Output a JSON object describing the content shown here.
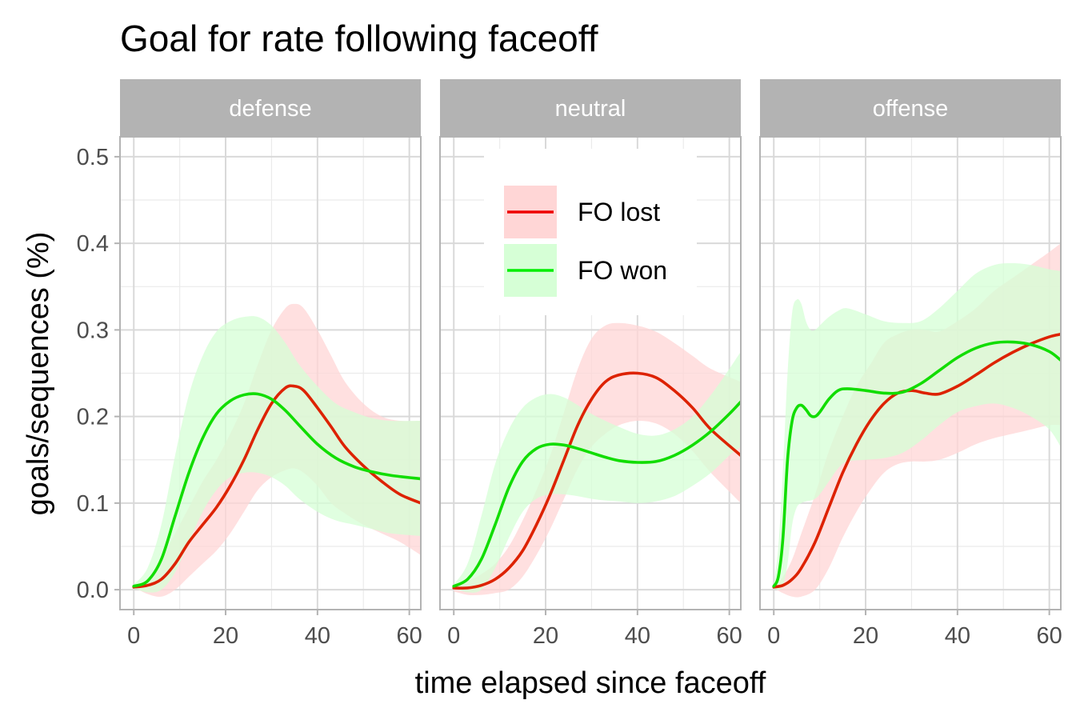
{
  "chart_data": {
    "type": "line",
    "title": "Goal for rate following faceoff",
    "xlabel": "time elapsed since faceoff",
    "ylabel": "goals/sequences (%)",
    "xlim": [
      -3,
      62.5
    ],
    "ylim": [
      -0.023,
      0.523
    ],
    "x_ticks": [
      0,
      20,
      40,
      60
    ],
    "y_ticks": [
      0.0,
      0.1,
      0.2,
      0.3,
      0.4,
      0.5
    ],
    "y_tick_labels": [
      "0.0",
      "0.1",
      "0.2",
      "0.3",
      "0.4",
      "0.5"
    ],
    "grid": true,
    "legend": {
      "placement": "inside neutral panel, upper left",
      "entries": [
        {
          "label": "FO lost",
          "color": "#ee0000",
          "ribbon_color": "#ffd6d6"
        },
        {
          "label": "FO won",
          "color": "#00ee00",
          "ribbon_color": "#d6ffd6"
        }
      ]
    },
    "panels": [
      {
        "facet": "defense",
        "series": [
          {
            "name": "FO lost",
            "x": [
              0,
              3,
              6,
              9,
              12,
              15,
              18,
              21,
              24,
              27,
              30,
              33,
              35,
              37,
              40,
              43,
              46,
              50,
              54,
              58,
              62.5
            ],
            "y": [
              0.003,
              0.005,
              0.012,
              0.03,
              0.055,
              0.075,
              0.095,
              0.12,
              0.15,
              0.185,
              0.215,
              0.233,
              0.235,
              0.23,
              0.21,
              0.188,
              0.165,
              0.143,
              0.125,
              0.11,
              0.1
            ],
            "lower": [
              0.003,
              -0.005,
              -0.008,
              0.0,
              0.015,
              0.03,
              0.045,
              0.065,
              0.09,
              0.115,
              0.13,
              0.138,
              0.14,
              0.135,
              0.12,
              0.1,
              0.088,
              0.075,
              0.065,
              0.055,
              0.04
            ],
            "upper": [
              0.005,
              0.012,
              0.035,
              0.065,
              0.095,
              0.125,
              0.15,
              0.18,
              0.215,
              0.26,
              0.3,
              0.325,
              0.33,
              0.325,
              0.3,
              0.27,
              0.24,
              0.215,
              0.2,
              0.195,
              0.195
            ]
          },
          {
            "name": "FO won",
            "x": [
              0,
              3,
              6,
              9,
              12,
              15,
              18,
              21,
              24,
              27,
              30,
              33,
              36,
              40,
              44,
              48,
              52,
              56,
              62.5
            ],
            "y": [
              0.004,
              0.01,
              0.035,
              0.085,
              0.135,
              0.175,
              0.203,
              0.218,
              0.225,
              0.226,
              0.22,
              0.207,
              0.19,
              0.168,
              0.152,
              0.142,
              0.136,
              0.132,
              0.128
            ],
            "lower": [
              0.002,
              -0.003,
              0.0,
              0.02,
              0.055,
              0.09,
              0.115,
              0.13,
              0.135,
              0.135,
              0.13,
              0.12,
              0.105,
              0.09,
              0.08,
              0.075,
              0.07,
              0.065,
              0.062
            ],
            "upper": [
              0.006,
              0.025,
              0.075,
              0.155,
              0.225,
              0.27,
              0.298,
              0.31,
              0.315,
              0.315,
              0.305,
              0.285,
              0.26,
              0.235,
              0.215,
              0.205,
              0.198,
              0.195,
              0.195
            ]
          }
        ]
      },
      {
        "facet": "neutral",
        "series": [
          {
            "name": "FO lost",
            "x": [
              0,
              3,
              6,
              9,
              12,
              15,
              18,
              21,
              24,
              27,
              30,
              33,
              36,
              40,
              44,
              48,
              52,
              56,
              62.5
            ],
            "y": [
              0.002,
              0.002,
              0.005,
              0.012,
              0.025,
              0.045,
              0.075,
              0.11,
              0.15,
              0.19,
              0.22,
              0.24,
              0.248,
              0.25,
              0.245,
              0.23,
              0.21,
              0.185,
              0.155
            ],
            "lower": [
              -0.002,
              -0.006,
              -0.006,
              -0.004,
              0.0,
              0.015,
              0.04,
              0.07,
              0.105,
              0.14,
              0.165,
              0.18,
              0.19,
              0.195,
              0.192,
              0.18,
              0.16,
              0.135,
              0.1
            ],
            "upper": [
              0.006,
              0.01,
              0.018,
              0.03,
              0.05,
              0.08,
              0.115,
              0.155,
              0.205,
              0.255,
              0.29,
              0.305,
              0.308,
              0.305,
              0.298,
              0.285,
              0.27,
              0.255,
              0.24
            ]
          },
          {
            "name": "FO won",
            "x": [
              0,
              3,
              6,
              9,
              12,
              15,
              18,
              21,
              24,
              27,
              30,
              33,
              36,
              40,
              44,
              48,
              52,
              56,
              60,
              62.5
            ],
            "y": [
              0.004,
              0.012,
              0.035,
              0.075,
              0.118,
              0.148,
              0.163,
              0.168,
              0.167,
              0.163,
              0.158,
              0.153,
              0.149,
              0.147,
              0.148,
              0.155,
              0.167,
              0.183,
              0.203,
              0.217
            ],
            "lower": [
              0.002,
              -0.003,
              0.0,
              0.025,
              0.06,
              0.09,
              0.105,
              0.11,
              0.11,
              0.108,
              0.105,
              0.103,
              0.102,
              0.1,
              0.102,
              0.108,
              0.12,
              0.135,
              0.155,
              0.165
            ],
            "upper": [
              0.006,
              0.03,
              0.085,
              0.145,
              0.185,
              0.21,
              0.222,
              0.226,
              0.222,
              0.213,
              0.203,
              0.195,
              0.188,
              0.18,
              0.178,
              0.185,
              0.2,
              0.225,
              0.255,
              0.275
            ]
          }
        ]
      },
      {
        "facet": "offense",
        "series": [
          {
            "name": "FO lost",
            "x": [
              0,
              2,
              4,
              6,
              9,
              12,
              15,
              18,
              21,
              24,
              27,
              30,
              33,
              36,
              40,
              44,
              48,
              52,
              56,
              60,
              62.5
            ],
            "y": [
              0.003,
              0.005,
              0.012,
              0.025,
              0.055,
              0.095,
              0.135,
              0.168,
              0.195,
              0.215,
              0.227,
              0.23,
              0.227,
              0.226,
              0.235,
              0.248,
              0.262,
              0.274,
              0.284,
              0.292,
              0.295
            ],
            "lower": [
              0.002,
              -0.004,
              -0.008,
              -0.008,
              0.0,
              0.025,
              0.06,
              0.09,
              0.115,
              0.135,
              0.145,
              0.148,
              0.148,
              0.15,
              0.158,
              0.168,
              0.175,
              0.18,
              0.185,
              0.19,
              0.19
            ],
            "upper": [
              0.004,
              0.015,
              0.035,
              0.065,
              0.11,
              0.16,
              0.2,
              0.235,
              0.26,
              0.285,
              0.295,
              0.3,
              0.3,
              0.298,
              0.31,
              0.325,
              0.345,
              0.36,
              0.375,
              0.39,
              0.4
            ]
          },
          {
            "name": "FO won",
            "x": [
              0,
              1,
              2,
              3,
              4,
              5,
              6,
              7,
              8,
              9,
              10,
              12,
              14,
              16,
              20,
              24,
              28,
              32,
              36,
              40,
              44,
              48,
              52,
              56,
              60,
              62.5
            ],
            "y": [
              0.004,
              0.015,
              0.06,
              0.15,
              0.195,
              0.21,
              0.213,
              0.208,
              0.201,
              0.2,
              0.205,
              0.22,
              0.23,
              0.232,
              0.23,
              0.227,
              0.228,
              0.238,
              0.253,
              0.268,
              0.279,
              0.285,
              0.286,
              0.283,
              0.275,
              0.265
            ],
            "lower": [
              0.002,
              0.0,
              0.005,
              0.03,
              0.075,
              0.095,
              0.1,
              0.102,
              0.103,
              0.105,
              0.11,
              0.125,
              0.14,
              0.148,
              0.15,
              0.152,
              0.158,
              0.172,
              0.19,
              0.205,
              0.212,
              0.215,
              0.21,
              0.2,
              0.185,
              0.165
            ],
            "upper": [
              0.006,
              0.05,
              0.14,
              0.25,
              0.32,
              0.335,
              0.33,
              0.31,
              0.3,
              0.3,
              0.305,
              0.315,
              0.322,
              0.325,
              0.318,
              0.31,
              0.308,
              0.31,
              0.325,
              0.345,
              0.365,
              0.375,
              0.377,
              0.375,
              0.37,
              0.368
            ]
          }
        ]
      }
    ]
  }
}
